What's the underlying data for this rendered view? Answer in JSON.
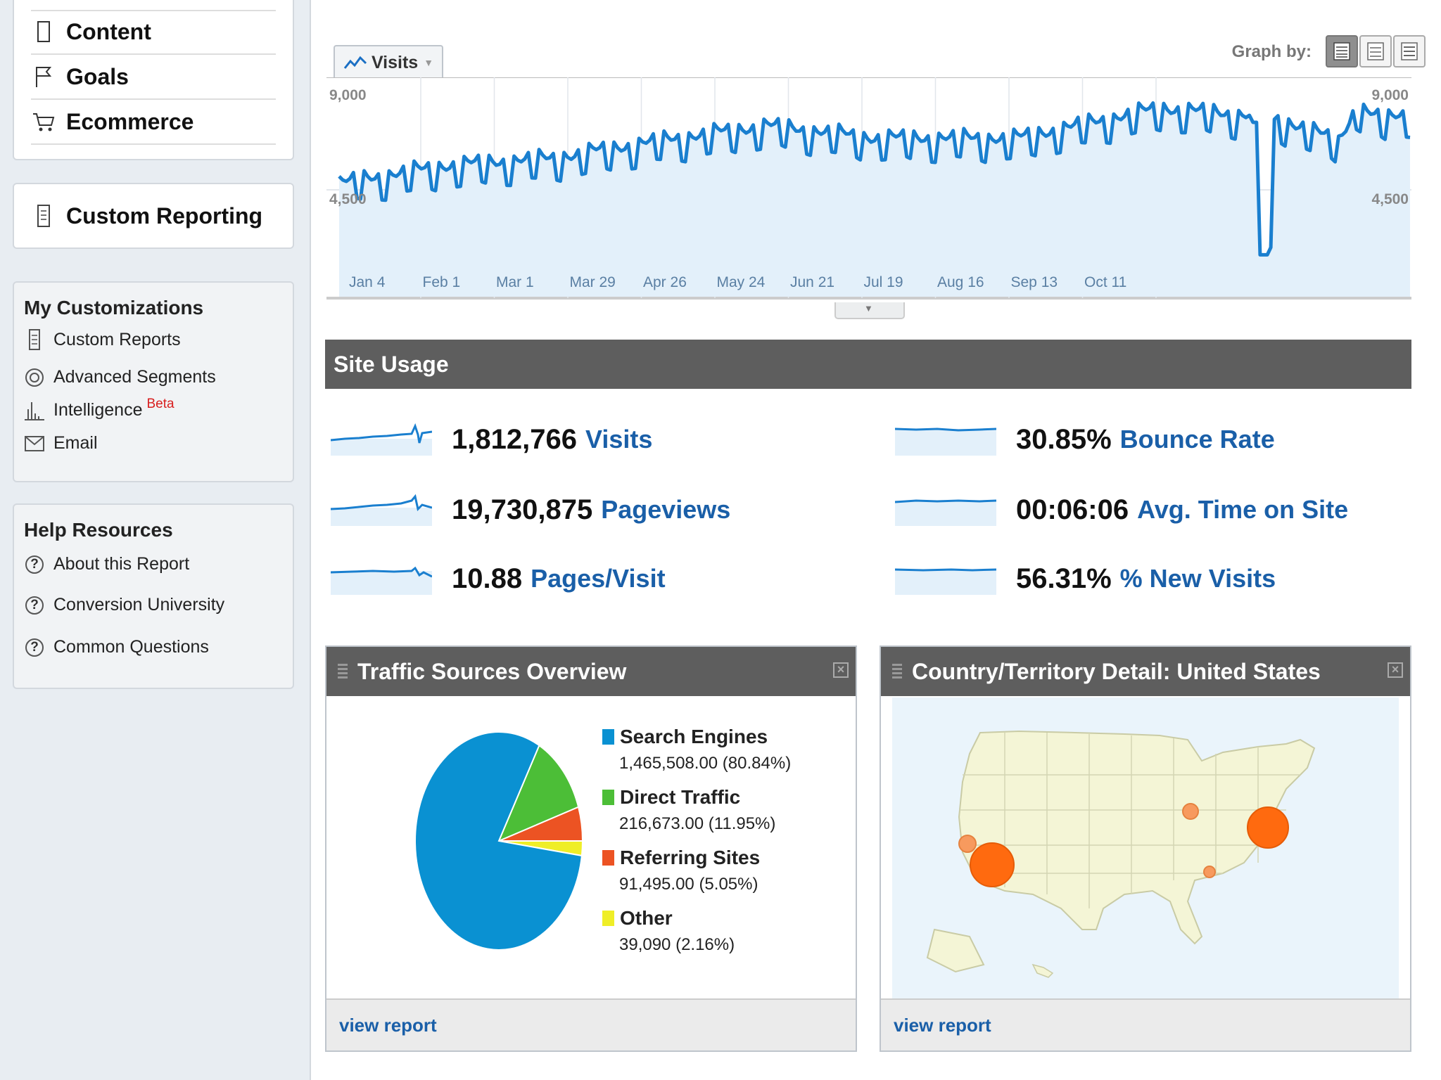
{
  "sidebar": {
    "nav": [
      {
        "label": "Content",
        "icon": "document-icon"
      },
      {
        "label": "Goals",
        "icon": "flag-icon"
      },
      {
        "label": "Ecommerce",
        "icon": "cart-icon"
      }
    ],
    "custom_reporting": "Custom Reporting",
    "customizations": {
      "title": "My Customizations",
      "items": [
        {
          "label": "Custom Reports",
          "icon": "report-icon"
        },
        {
          "label": "Advanced Segments",
          "icon": "segments-icon"
        },
        {
          "label": "Intelligence",
          "badge": "Beta",
          "icon": "intelligence-icon"
        },
        {
          "label": "Email",
          "icon": "envelope-icon"
        }
      ]
    },
    "help": {
      "title": "Help Resources",
      "items": [
        {
          "label": "About this Report"
        },
        {
          "label": "Conversion University"
        },
        {
          "label": "Common Questions"
        }
      ]
    }
  },
  "graph": {
    "metric_tab": "Visits",
    "graph_by_label": "Graph by:",
    "y_tick_top": "9,000",
    "y_tick_mid": "4,500",
    "x_ticks": [
      "Jan 4",
      "Feb 1",
      "Mar 1",
      "Mar 29",
      "Apr 26",
      "May 24",
      "Jun 21",
      "Jul 19",
      "Aug 16",
      "Sep 13",
      "Oct 11"
    ]
  },
  "chart_data": {
    "type": "area",
    "series": [
      {
        "name": "Visits"
      }
    ],
    "y_range": [
      0,
      9000
    ],
    "grid": true,
    "baseline_points": [
      [
        0,
        4500
      ],
      [
        30,
        5200
      ],
      [
        60,
        5500
      ],
      [
        90,
        6200
      ],
      [
        120,
        6800
      ],
      [
        150,
        6300
      ],
      [
        190,
        6300
      ],
      [
        230,
        7500
      ],
      [
        255,
        7200
      ],
      [
        258,
        1900
      ],
      [
        262,
        7000
      ],
      [
        270,
        6800
      ],
      [
        280,
        6100
      ],
      [
        285,
        7600
      ],
      [
        293,
        7000
      ],
      [
        300,
        7300
      ]
    ]
  },
  "site_usage": {
    "title": "Site Usage",
    "metrics": [
      {
        "value": "1,812,766",
        "label": "Visits"
      },
      {
        "value": "30.85%",
        "label": "Bounce Rate"
      },
      {
        "value": "19,730,875",
        "label": "Pageviews"
      },
      {
        "value": "00:06:06",
        "label": "Avg. Time on Site"
      },
      {
        "value": "10.88",
        "label": "Pages/Visit"
      },
      {
        "value": "56.31%",
        "label": "% New Visits"
      }
    ]
  },
  "traffic": {
    "title": "Traffic Sources Overview",
    "view_report": "view report",
    "sources": [
      {
        "name": "Search Engines",
        "detail": "1,465,508.00 (80.84%)",
        "pct": 80.84,
        "color": "#0a91d2"
      },
      {
        "name": "Direct Traffic",
        "detail": "216,673.00 (11.95%)",
        "pct": 11.95,
        "color": "#4cbe37"
      },
      {
        "name": "Referring Sites",
        "detail": "91,495.00 (5.05%)",
        "pct": 5.05,
        "color": "#ec5323"
      },
      {
        "name": "Other",
        "detail": "39,090 (2.16%)",
        "pct": 2.16,
        "color": "#efee27"
      }
    ]
  },
  "country": {
    "title": "Country/Territory Detail: United States",
    "view_report": "view report"
  }
}
